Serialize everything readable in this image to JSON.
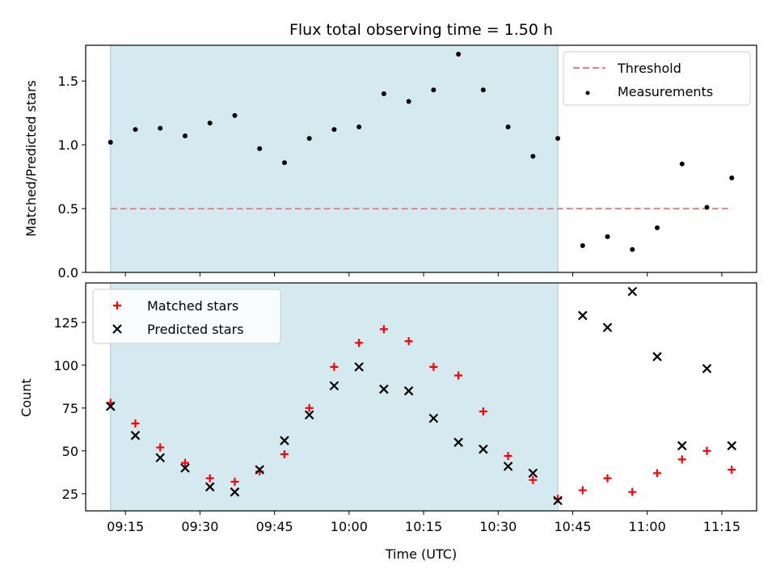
{
  "chart_data": {
    "title": "Flux total observing time = 1.50 h",
    "xlabel": "Time (UTC)",
    "x_unit": "minutes",
    "xlim": [
      "09:07",
      "11:22"
    ],
    "xticks": [
      "09:15",
      "09:30",
      "09:45",
      "10:00",
      "10:15",
      "10:30",
      "10:45",
      "11:00",
      "11:15"
    ],
    "x": [
      "09:12",
      "09:17",
      "09:22",
      "09:27",
      "09:32",
      "09:37",
      "09:42",
      "09:47",
      "09:52",
      "09:57",
      "10:02",
      "10:07",
      "10:12",
      "10:17",
      "10:22",
      "10:27",
      "10:32",
      "10:37",
      "10:42",
      "10:47",
      "10:52",
      "10:57",
      "11:02",
      "11:07",
      "11:12",
      "11:17"
    ],
    "shaded_region": {
      "from": "09:12",
      "to": "10:42",
      "color": "#d4eaf0"
    },
    "panels": [
      {
        "type": "scatter",
        "ylabel": "Matched/Predicted stars",
        "ylim": [
          0,
          1.78
        ],
        "yticks": [
          "0.0",
          "0.5",
          "1.0",
          "1.5"
        ],
        "threshold": {
          "name": "Threshold",
          "value": 0.5,
          "color": "#f08080",
          "from": "09:12",
          "to": "11:17"
        },
        "series": [
          {
            "name": "Measurements",
            "marker": "dot",
            "color": "#000000",
            "values": [
              1.02,
              1.12,
              1.13,
              1.07,
              1.17,
              1.23,
              0.97,
              0.86,
              1.05,
              1.12,
              1.14,
              1.4,
              1.34,
              1.43,
              1.71,
              1.43,
              1.14,
              0.91,
              1.05,
              0.21,
              0.28,
              0.18,
              0.35,
              0.85,
              0.51,
              0.74
            ]
          }
        ],
        "legend_position": "upper right"
      },
      {
        "type": "scatter",
        "ylabel": "Count",
        "ylim": [
          15,
          148
        ],
        "yticks": [
          "25",
          "50",
          "75",
          "100",
          "125"
        ],
        "series": [
          {
            "name": "Matched stars",
            "marker": "plus",
            "color": "#ff0000",
            "values": [
              78,
              66,
              52,
              43,
              34,
              32,
              38,
              48,
              75,
              99,
              113,
              121,
              114,
              99,
              94,
              73,
              47,
              33,
              22,
              27,
              34,
              26,
              37,
              45,
              50,
              39
            ]
          },
          {
            "name": "Predicted stars",
            "marker": "x",
            "color": "#000000",
            "values": [
              76,
              59,
              46,
              40,
              29,
              26,
              39,
              56,
              71,
              88,
              99,
              86,
              85,
              69,
              55,
              51,
              41,
              37,
              21,
              129,
              122,
              143,
              105,
              53,
              98,
              53
            ]
          }
        ],
        "legend_position": "upper left"
      }
    ]
  }
}
